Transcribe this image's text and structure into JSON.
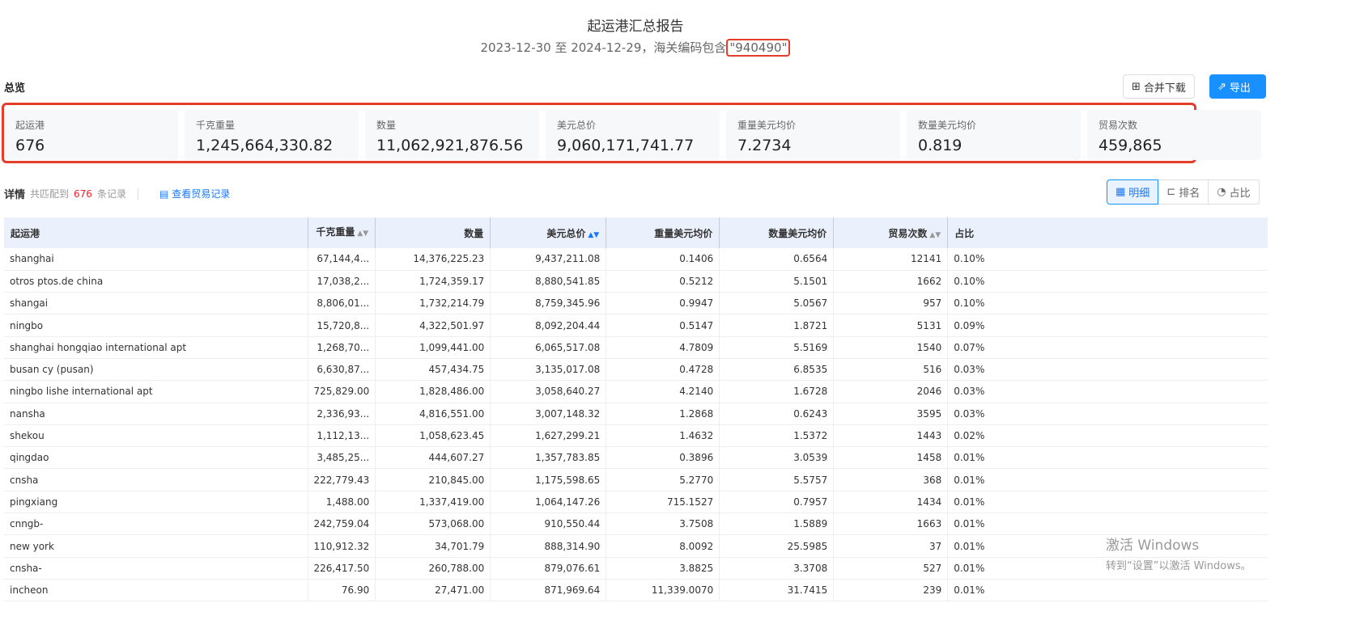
{
  "header": {
    "title": "起运港汇总报告",
    "subtitle_prefix": "2023-12-30 至 2024-12-29，海关编码包含",
    "hs_code": "\"940490\""
  },
  "overview": {
    "label": "总览",
    "merge_download": "合并下载",
    "export": "导出",
    "stats": [
      {
        "label": "起运港",
        "value": "676"
      },
      {
        "label": "千克重量",
        "value": "1,245,664,330.82"
      },
      {
        "label": "数量",
        "value": "11,062,921,876.56"
      },
      {
        "label": "美元总价",
        "value": "9,060,171,741.77"
      },
      {
        "label": "重量美元均价",
        "value": "7.2734"
      },
      {
        "label": "数量美元均价",
        "value": "0.819"
      },
      {
        "label": "贸易次数",
        "value": "459,865"
      }
    ]
  },
  "detail": {
    "label": "详情",
    "matched_prefix": "共匹配到",
    "count": "676",
    "matched_suffix": "条记录",
    "view_records": "查看贸易记录",
    "views": [
      {
        "label": "明细",
        "active": true
      },
      {
        "label": "排名"
      },
      {
        "label": "占比"
      }
    ]
  },
  "table": {
    "columns": [
      "起运港",
      "千克重量",
      "数量",
      "美元总价",
      "重量美元均价",
      "数量美元均价",
      "贸易次数",
      "占比"
    ],
    "sorted_column": "美元总价",
    "rows": [
      [
        "shanghai",
        "67,144,4...",
        "14,376,225.23",
        "9,437,211.08",
        "0.1406",
        "0.6564",
        "12141",
        "0.10%"
      ],
      [
        "otros ptos.de china",
        "17,038,2...",
        "1,724,359.17",
        "8,880,541.85",
        "0.5212",
        "5.1501",
        "1662",
        "0.10%"
      ],
      [
        "shangai",
        "8,806,01...",
        "1,732,214.79",
        "8,759,345.96",
        "0.9947",
        "5.0567",
        "957",
        "0.10%"
      ],
      [
        "ningbo",
        "15,720,8...",
        "4,322,501.97",
        "8,092,204.44",
        "0.5147",
        "1.8721",
        "5131",
        "0.09%"
      ],
      [
        "shanghai hongqiao international apt",
        "1,268,70...",
        "1,099,441.00",
        "6,065,517.08",
        "4.7809",
        "5.5169",
        "1540",
        "0.07%"
      ],
      [
        "busan cy (pusan)",
        "6,630,87...",
        "457,434.75",
        "3,135,017.08",
        "0.4728",
        "6.8535",
        "516",
        "0.03%"
      ],
      [
        "ningbo lishe international apt",
        "725,829.00",
        "1,828,486.00",
        "3,058,640.27",
        "4.2140",
        "1.6728",
        "2046",
        "0.03%"
      ],
      [
        "nansha",
        "2,336,93...",
        "4,816,551.00",
        "3,007,148.32",
        "1.2868",
        "0.6243",
        "3595",
        "0.03%"
      ],
      [
        "shekou",
        "1,112,13...",
        "1,058,623.45",
        "1,627,299.21",
        "1.4632",
        "1.5372",
        "1443",
        "0.02%"
      ],
      [
        "qingdao",
        "3,485,25...",
        "444,607.27",
        "1,357,783.85",
        "0.3896",
        "3.0539",
        "1458",
        "0.01%"
      ],
      [
        "cnsha",
        "222,779.43",
        "210,845.00",
        "1,175,598.65",
        "5.2770",
        "5.5757",
        "368",
        "0.01%"
      ],
      [
        "pingxiang",
        "1,488.00",
        "1,337,419.00",
        "1,064,147.26",
        "715.1527",
        "0.7957",
        "1434",
        "0.01%"
      ],
      [
        "cnngb-",
        "242,759.04",
        "573,068.00",
        "910,550.44",
        "3.7508",
        "1.5889",
        "1663",
        "0.01%"
      ],
      [
        "new york",
        "110,912.32",
        "34,701.79",
        "888,314.90",
        "8.0092",
        "25.5985",
        "37",
        "0.01%"
      ],
      [
        "cnsha-",
        "226,417.50",
        "260,788.00",
        "879,076.61",
        "3.8825",
        "3.3708",
        "527",
        "0.01%"
      ],
      [
        "incheon",
        "76.90",
        "27,471.00",
        "871,969.64",
        "11,339.0070",
        "31.7415",
        "239",
        "0.01%"
      ]
    ]
  },
  "watermark": {
    "line1": "激活 Windows",
    "line2": "转到“设置”以激活 Windows。"
  },
  "colors": {
    "accent": "#1890ff",
    "highlight": "#e53d2c",
    "header_bg": "#ebf1fc",
    "count": "#f5222d"
  }
}
